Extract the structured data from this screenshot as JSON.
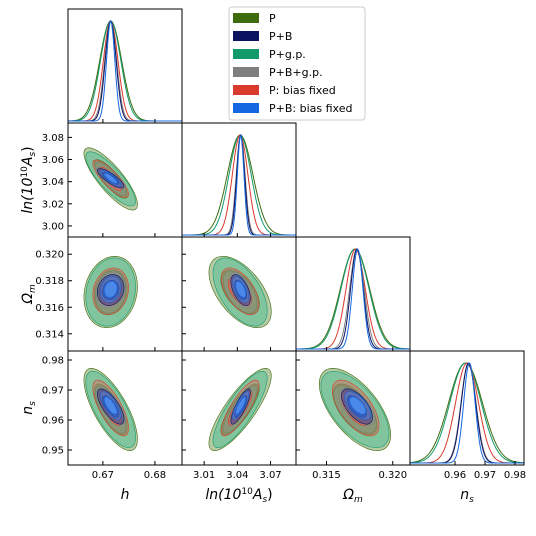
{
  "chart_data": {
    "type": "corner",
    "parameters": [
      {
        "label_base": "h",
        "label_sup": "",
        "label_sub": "",
        "label_tail": "",
        "ticks": [
          "0.67",
          "0.68"
        ],
        "tick_values": [
          0.67,
          0.68
        ],
        "range": [
          0.6633,
          0.6852
        ]
      },
      {
        "label_base": "ln(10",
        "label_sup": "10",
        "label_sub": "",
        "label_tail": "A",
        "label_tail_sub": "s",
        "ticks": [
          "3.01",
          "3.04",
          "3.07"
        ],
        "tick_values": [
          3.01,
          3.04,
          3.07
        ],
        "range": [
          2.99,
          3.093
        ]
      },
      {
        "label_base": "Ω",
        "label_sup": "",
        "label_sub": "m",
        "label_tail": "",
        "ticks": [
          "0.315",
          "0.320"
        ],
        "tick_values": [
          0.315,
          0.32
        ],
        "range": [
          0.3127,
          0.3213
        ]
      },
      {
        "label_base": "n",
        "label_sup": "",
        "label_sub": "s",
        "label_tail": "",
        "ticks": [
          "0.96",
          "0.97",
          "0.98"
        ],
        "tick_values": [
          0.96,
          0.97,
          0.98
        ],
        "range": [
          0.945,
          0.983
        ]
      }
    ],
    "row_labels_y": [
      {
        "ticks": [
          "3.00",
          "3.02",
          "3.04",
          "3.06",
          "3.08"
        ],
        "tick_values": [
          3.0,
          3.02,
          3.04,
          3.06,
          3.08
        ]
      },
      {
        "ticks": [
          "0.314",
          "0.316",
          "0.318",
          "0.320"
        ],
        "tick_values": [
          0.314,
          0.316,
          0.318,
          0.32
        ]
      },
      {
        "ticks": [
          "0.95",
          "0.96",
          "0.97",
          "0.98"
        ],
        "tick_values": [
          0.95,
          0.96,
          0.97,
          0.98
        ]
      }
    ],
    "series": [
      {
        "name": "P",
        "color": "#3e6b0e",
        "fill": "#5f8a33",
        "mean": [
          0.6715,
          3.0425,
          0.31715,
          0.9635
        ],
        "sigma": [
          0.0021,
          0.0115,
          0.0011,
          0.0056
        ]
      },
      {
        "name": "P+B",
        "color": "#0b1260",
        "fill": "#1b2a8a",
        "mean": [
          0.6715,
          3.043,
          0.3173,
          0.9645
        ],
        "sigma": [
          0.00105,
          0.0036,
          0.00048,
          0.0024
        ]
      },
      {
        "name": "P+g.p.",
        "color": "#129a6b",
        "fill": "#3fbf98",
        "mean": [
          0.6715,
          3.0425,
          0.31715,
          0.9635
        ],
        "sigma": [
          0.00195,
          0.01,
          0.00105,
          0.0052
        ]
      },
      {
        "name": "P+B+g.p.",
        "color": "#7f7f7f",
        "fill": "#9a9a9a",
        "mean": [
          0.6715,
          3.043,
          0.3173,
          0.9645
        ],
        "sigma": [
          0.00115,
          0.004,
          0.00055,
          0.0025
        ]
      },
      {
        "name": "P: bias fixed",
        "color": "#d93a2b",
        "fill": "#e06a5c",
        "mean": [
          0.6715,
          3.0425,
          0.3172,
          0.964
        ],
        "sigma": [
          0.0014,
          0.007,
          0.00072,
          0.0038
        ]
      },
      {
        "name": "P+B: bias fixed",
        "color": "#1467e0",
        "fill": "#4f8ff0",
        "mean": [
          0.6715,
          3.043,
          0.31735,
          0.9648
        ],
        "sigma": [
          0.0008,
          0.003,
          0.0004,
          0.0019
        ]
      }
    ],
    "correlations": {
      "1-0": -0.82,
      "2-0": 0.15,
      "2-1": -0.55,
      "3-0": -0.72,
      "3-1": 0.82,
      "3-2": -0.62
    },
    "legend_position": "top-right"
  }
}
